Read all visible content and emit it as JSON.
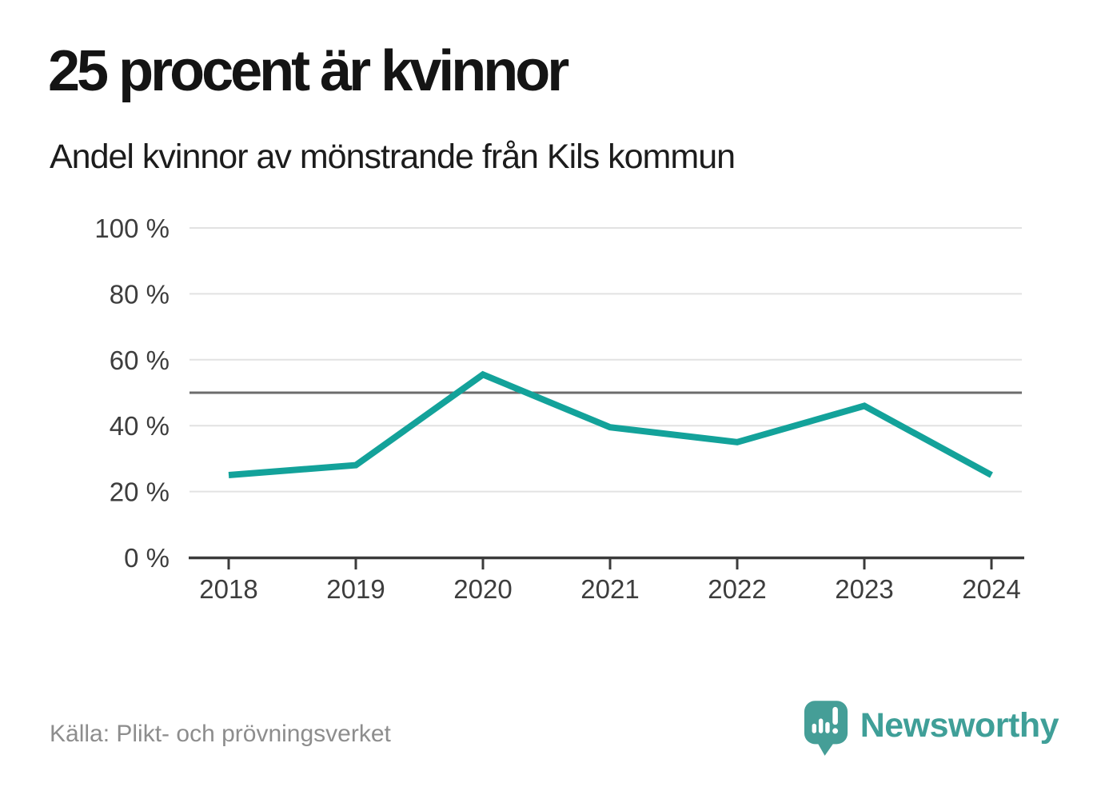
{
  "title": "25 procent är kvinnor",
  "subtitle": "Andel kvinnor av mönstrande från Kils kommun",
  "chart_data": {
    "type": "line",
    "x": [
      2018,
      2019,
      2020,
      2021,
      2022,
      2023,
      2024
    ],
    "x_tick_labels": [
      "2018",
      "2019",
      "2020",
      "2021",
      "2022",
      "2023",
      "2024"
    ],
    "series": [
      {
        "name": "Andel kvinnor av mönstrande",
        "values": [
          25,
          28,
          55.5,
          39.5,
          35,
          46,
          25
        ]
      }
    ],
    "y_ticks": [
      0,
      20,
      40,
      60,
      80,
      100
    ],
    "y_tick_labels": [
      "0 %",
      "20 %",
      "40 %",
      "60 %",
      "80 %",
      "100 %"
    ],
    "ylim": [
      0,
      100
    ],
    "reference_line": 50,
    "grid": true,
    "legend": "none",
    "line_color": "#13a29a"
  },
  "footer": {
    "source": "Källa: Plikt- och prövningsverket",
    "logo_text": "Newsworthy"
  },
  "colors": {
    "accent_teal": "#13a29a",
    "logo_teal": "#459e97",
    "grid_line": "#e2e2e2",
    "reference_line": "#6c6c6c",
    "axis": "#3b3b3b",
    "title_text": "#141414",
    "axis_text": "#3d3d3d",
    "muted_text": "#8d8d8d",
    "background": "#ffffff"
  }
}
